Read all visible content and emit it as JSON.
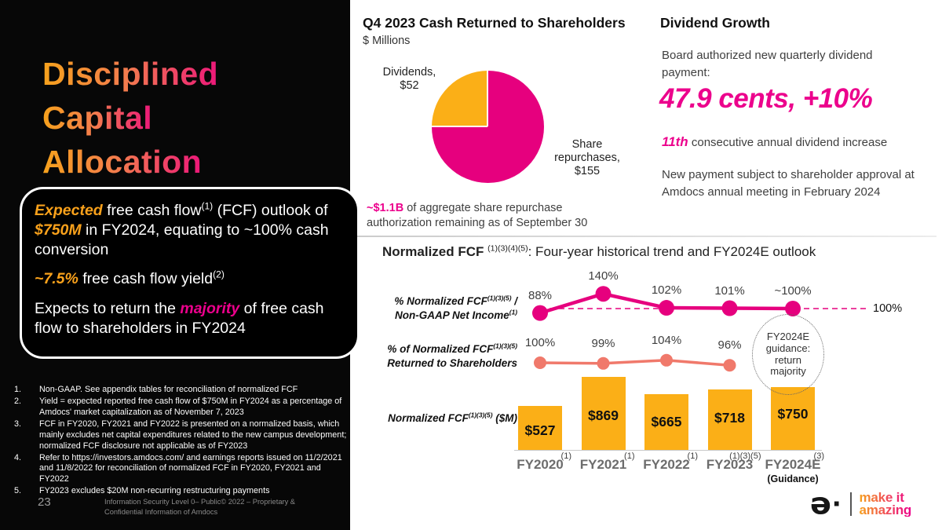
{
  "left_panel": {
    "title_lines": [
      "Disciplined",
      "Capital",
      "Allocation"
    ],
    "callout": {
      "p1": [
        {
          "t": "Expected",
          "c": "hl-orange"
        },
        {
          "t": " free cash flow",
          "c": ""
        },
        {
          "t": "(1)",
          "c": "sup"
        },
        {
          "t": " (FCF) outlook of ",
          "c": ""
        },
        {
          "t": "$750M",
          "c": "hl-orange"
        },
        {
          "t": " in FY2024, equating to ~100% cash conversion",
          "c": ""
        }
      ],
      "p2": [
        {
          "t": "~7.5%",
          "c": "hl-orange"
        },
        {
          "t": " free cash flow yield",
          "c": ""
        },
        {
          "t": "(2)",
          "c": "sup"
        }
      ],
      "p3": [
        {
          "t": "Expects to return the ",
          "c": ""
        },
        {
          "t": "majority",
          "c": "hl-pink"
        },
        {
          "t": " of free cash flow to shareholders in FY2024",
          "c": ""
        }
      ]
    },
    "footnotes": [
      "Non-GAAP. See appendix tables for reconciliation of normalized FCF",
      "Yield = expected reported free cash flow of $750M in FY2024 as a percentage of Amdocs' market capitalization as of November 7, 2023",
      "FCF in FY2020, FY2021 and FY2022 is presented on a normalized basis, which mainly excludes net capital expenditures related to the new campus development; normalized FCF disclosure not applicable as of FY2023",
      "Refer to https://investors.amdocs.com/ and earnings reports issued on 11/2/2021 and 11/8/2022 for reconciliation of normalized FCF in FY2020, FY2021 and FY2022",
      "FY2023 excludes $20M non-recurring restructuring payments"
    ],
    "page_number": "23",
    "footer_note": "Information Security Level 0– Public© 2022 – Proprietary & Confidential Information of Amdocs"
  },
  "pie_section": {
    "title": "Q4 2023 Cash Returned to Shareholders",
    "subtitle": "$ Millions",
    "label_dividends": "Dividends,\n$52",
    "label_share": "Share\nrepurchases,\n$155",
    "note": [
      {
        "t": "~$1.1B",
        "c": "pinkb"
      },
      {
        "t": " of aggregate share repurchase authorization remaining as of September 30",
        "c": ""
      }
    ]
  },
  "dividend_section": {
    "title": "Dividend Growth",
    "line1": "Board authorized new quarterly dividend payment:",
    "big": "47.9 cents, +10%",
    "line2": [
      {
        "t": "11th",
        "c": "hl-pink sz17"
      },
      {
        "t": " consecutive annual dividend increase",
        "c": ""
      }
    ],
    "line3": "New payment subject to shareholder approval at Amdocs annual meeting in February 2024"
  },
  "fcf_section": {
    "heading": [
      {
        "t": "Normalized FCF ",
        "c": "hb"
      },
      {
        "t": "(1)(3)(4)(5)",
        "c": "sup"
      },
      {
        "t": ": Four-year historical trend and FY2024E outlook",
        "c": ""
      }
    ],
    "row_labels": {
      "r1a": [
        {
          "t": "% Normalized FCF",
          "c": ""
        },
        {
          "t": "(1)(3)(5)",
          "c": "sup"
        },
        {
          "t": " /",
          "c": ""
        }
      ],
      "r1b": [
        {
          "t": "Non-GAAP Net Income",
          "c": ""
        },
        {
          "t": "(1)",
          "c": "sup"
        }
      ],
      "r2a": [
        {
          "t": "% of Normalized FCF",
          "c": ""
        },
        {
          "t": "(1)(3)(5)",
          "c": "sup"
        }
      ],
      "r2b": [
        {
          "t": "Returned to Shareholders",
          "c": ""
        }
      ],
      "r3": [
        {
          "t": "Normalized FCF",
          "c": ""
        },
        {
          "t": "(1)(3)(5)",
          "c": "sup"
        },
        {
          "t": " ($M)",
          "c": ""
        }
      ]
    },
    "annotation": "FY2024E\nguidance:\nreturn\nmajority",
    "guidance_sub": "(Guidance)"
  },
  "logo": {
    "mark": "ə",
    "dot": "·",
    "tagline_line1": "make it",
    "tagline_line2": "amazing"
  },
  "chart_data": [
    {
      "type": "pie",
      "title": "Q4 2023 Cash Returned to Shareholders",
      "unit": "$ Millions",
      "slices": [
        {
          "label": "Dividends",
          "value": 52,
          "color": "#FBAF17"
        },
        {
          "label": "Share repurchases",
          "value": 155,
          "color": "#E6007E"
        }
      ],
      "legend_position": "around"
    },
    {
      "type": "combo",
      "categories": [
        "FY2020",
        "FY2021",
        "FY2022",
        "FY2023",
        "FY2024E"
      ],
      "category_superscripts": [
        "(1)",
        "(1)",
        "(1)",
        "(1)(3)(5)",
        "(3)"
      ],
      "series": [
        {
          "name": "% Normalized FCF / Non-GAAP Net Income",
          "type": "line",
          "color": "#E6007E",
          "values": [
            88,
            140,
            102,
            101,
            100
          ],
          "labels": [
            "88%",
            "140%",
            "102%",
            "101%",
            "~100%"
          ]
        },
        {
          "name": "% of Normalized FCF Returned to Shareholders",
          "type": "line",
          "color": "#F0796B",
          "values": [
            100,
            99,
            104,
            96,
            null
          ],
          "labels": [
            "100%",
            "99%",
            "104%",
            "96%",
            ""
          ]
        },
        {
          "name": "Normalized FCF ($M)",
          "type": "bar",
          "color": "#FBAF17",
          "values": [
            527,
            869,
            665,
            718,
            750
          ],
          "labels": [
            "$527",
            "$869",
            "$665",
            "$718",
            "$750"
          ]
        }
      ],
      "ref_line": {
        "value": 100,
        "label": "100%"
      },
      "annotation": "FY2024E guidance: return majority",
      "grid": false,
      "legend_position": "left-row-labels"
    }
  ]
}
